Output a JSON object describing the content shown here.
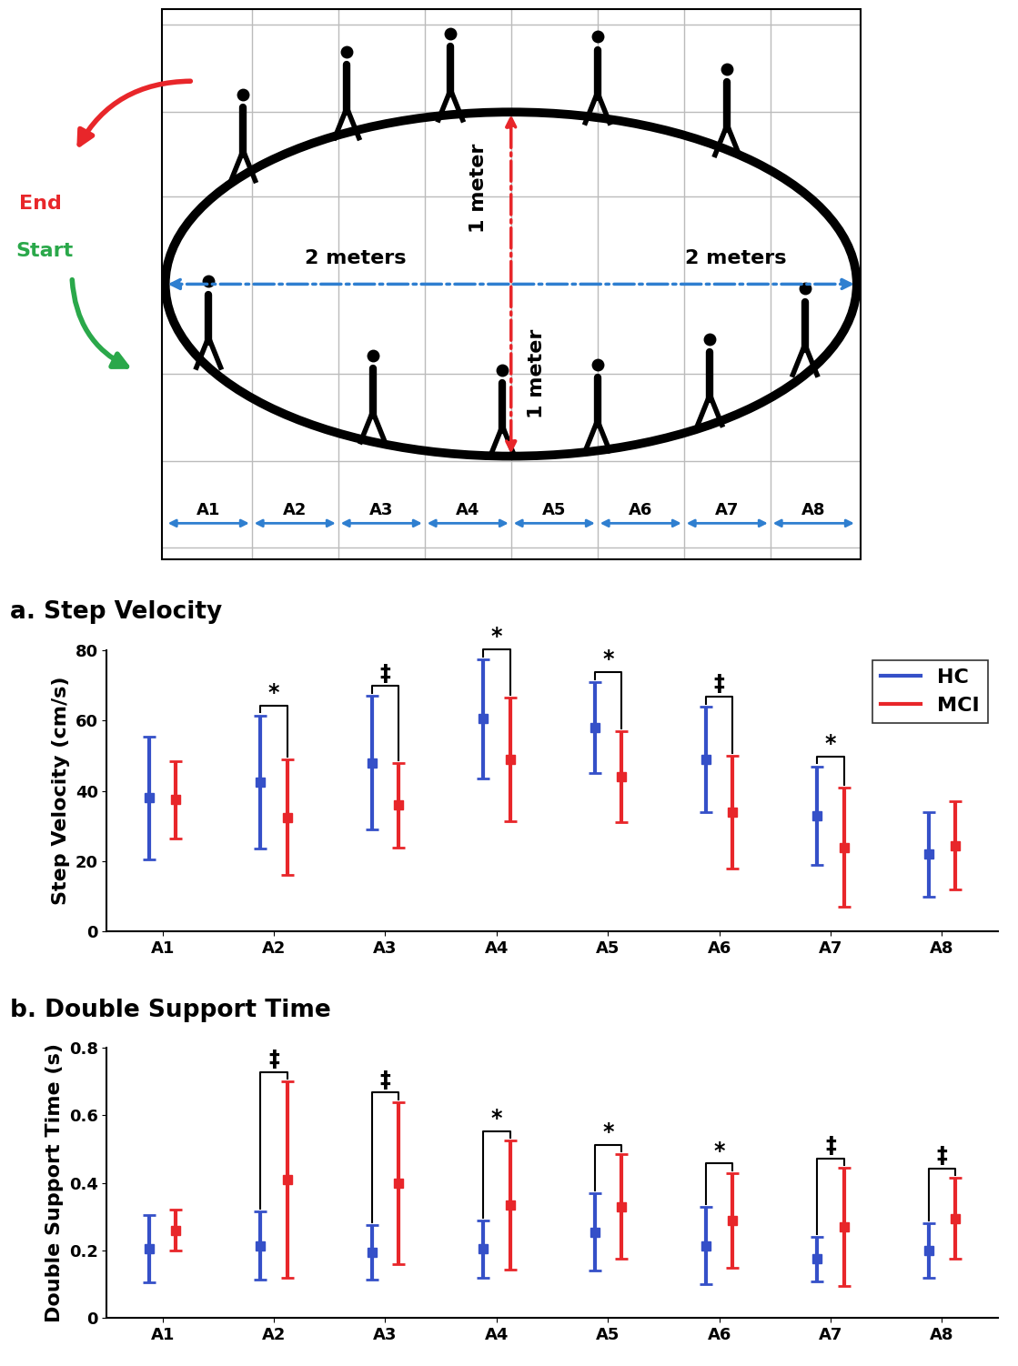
{
  "diagram": {
    "start": "Start",
    "end": "End",
    "width_labels": [
      "2 meters",
      "2 meters"
    ],
    "height_labels": [
      "1 meter",
      "1 meter"
    ],
    "segments": [
      "A1",
      "A2",
      "A3",
      "A4",
      "A5",
      "A6",
      "A7",
      "A8"
    ]
  },
  "chart_data": [
    {
      "type": "errorbar",
      "title": "a. Step Velocity",
      "y_label": "Step Velocity (cm/s)",
      "categories": [
        "A1",
        "A2",
        "A3",
        "A4",
        "A5",
        "A6",
        "A7",
        "A8"
      ],
      "series": [
        {
          "name": "HC",
          "color": "#3550c8",
          "marker": "square",
          "values": [
            38,
            42.5,
            48,
            60.5,
            58,
            49,
            33,
            22
          ],
          "error": [
            17.5,
            19,
            19,
            17,
            13,
            15,
            14,
            12
          ]
        },
        {
          "name": "MCI",
          "color": "#e8262a",
          "marker": "square",
          "values": [
            37.5,
            32.5,
            36,
            49,
            44,
            34,
            24,
            24.5
          ],
          "error": [
            11,
            16.5,
            12,
            17.5,
            13,
            16,
            17,
            12.5
          ]
        }
      ],
      "significance": [
        null,
        "*",
        "‡",
        "*",
        "*",
        "‡",
        "*",
        null
      ],
      "ylim": [
        0,
        80
      ],
      "yticks": [
        0,
        20,
        40,
        60,
        80
      ],
      "legend": "upper right"
    },
    {
      "type": "errorbar",
      "title": "b. Double Support Time",
      "y_label": "Double Support Time (s)",
      "categories": [
        "A1",
        "A2",
        "A3",
        "A4",
        "A5",
        "A6",
        "A7",
        "A8"
      ],
      "series": [
        {
          "name": "HC",
          "color": "#3550c8",
          "marker": "square",
          "values": [
            0.205,
            0.215,
            0.195,
            0.205,
            0.255,
            0.215,
            0.175,
            0.2
          ],
          "error": [
            0.1,
            0.1,
            0.08,
            0.085,
            0.115,
            0.115,
            0.065,
            0.08
          ]
        },
        {
          "name": "MCI",
          "color": "#e8262a",
          "marker": "square",
          "values": [
            0.26,
            0.41,
            0.4,
            0.335,
            0.33,
            0.29,
            0.27,
            0.295
          ],
          "error": [
            0.06,
            0.29,
            0.24,
            0.19,
            0.155,
            0.14,
            0.175,
            0.12
          ]
        }
      ],
      "significance": [
        null,
        "‡",
        "‡",
        "*",
        "*",
        "*",
        "‡",
        "‡"
      ],
      "ylim": [
        0,
        0.8
      ],
      "yticks": [
        0,
        0.2,
        0.4,
        0.6,
        0.8
      ]
    }
  ]
}
